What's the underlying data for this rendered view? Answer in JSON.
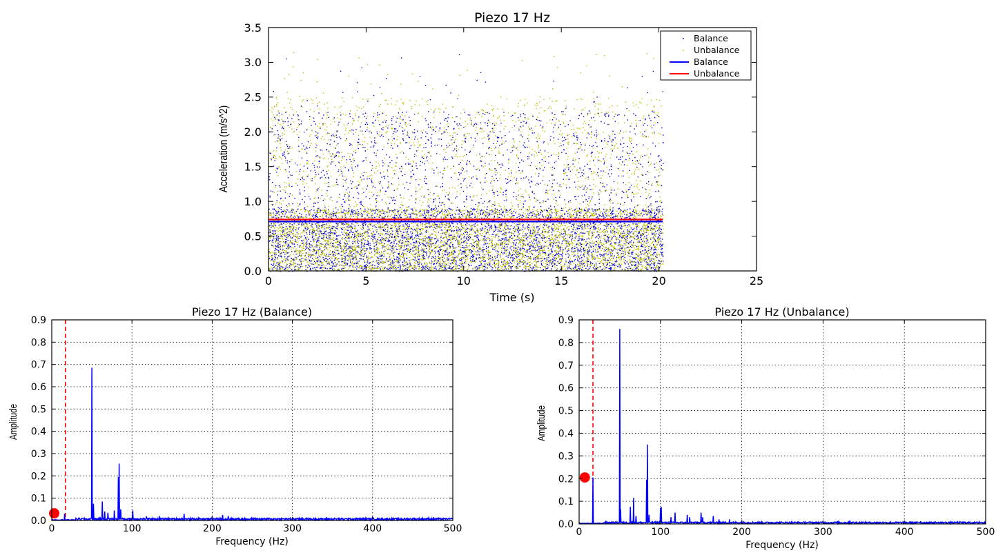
{
  "chart_data": [
    {
      "type": "scatter",
      "title": "Piezo 17 Hz",
      "xlabel": "Time (s)",
      "ylabel": "Acceleration (m/s^2)",
      "xlim": [
        0,
        25
      ],
      "ylim": [
        0,
        3.5
      ],
      "xticks": [
        "0",
        "5",
        "10",
        "15",
        "20",
        "25"
      ],
      "yticks": [
        "0.0",
        "0.5",
        "1.0",
        "1.5",
        "2.0",
        "2.5",
        "3.0",
        "3.5"
      ],
      "grid": false,
      "legend_position": "top-right",
      "legend": [
        {
          "label": "Balance",
          "kind": "points",
          "color": "#0000cc"
        },
        {
          "label": "Unbalance",
          "kind": "points",
          "color": "#bfbf00"
        },
        {
          "label": "Balance",
          "kind": "line",
          "color": "#0000ff"
        },
        {
          "label": "Unbalance",
          "kind": "line",
          "color": "#ff0000"
        }
      ],
      "series": [
        {
          "name": "Balance",
          "kind": "points",
          "color": "#0000cc",
          "x_range": [
            0,
            20.2
          ],
          "y_range": [
            0,
            3.12
          ],
          "typical_max": 2.3
        },
        {
          "name": "Unbalance",
          "kind": "points",
          "color": "#bfbf00",
          "x_range": [
            0,
            20.2
          ],
          "y_range": [
            0,
            3.15
          ],
          "typical_max": 2.5
        },
        {
          "name": "Balance",
          "kind": "line",
          "color": "#0000ff",
          "x": [
            0,
            20.2
          ],
          "y": [
            0.71,
            0.71
          ]
        },
        {
          "name": "Unbalance",
          "kind": "line",
          "color": "#ff0000",
          "x": [
            0,
            20.2
          ],
          "y": [
            0.74,
            0.74
          ]
        }
      ]
    },
    {
      "type": "line",
      "title": "Piezo 17 Hz (Balance)",
      "xlabel": "Frequency (Hz)",
      "ylabel": "Amplitude",
      "xlim": [
        0,
        500
      ],
      "ylim": [
        0,
        0.9
      ],
      "xticks": [
        "0",
        "100",
        "200",
        "300",
        "400",
        "500"
      ],
      "yticks": [
        "0.0",
        "0.1",
        "0.2",
        "0.3",
        "0.4",
        "0.5",
        "0.6",
        "0.7",
        "0.8",
        "0.9"
      ],
      "grid": true,
      "color": "#0000ff",
      "marker_line_x": 17,
      "marker_line_color": "#ff0000",
      "marker_point": {
        "x": 3,
        "y": 0.032,
        "color": "#ff0000"
      },
      "peaks": [
        {
          "x": 16,
          "y": 0.03
        },
        {
          "x": 50,
          "y": 0.685
        },
        {
          "x": 52,
          "y": 0.075
        },
        {
          "x": 63,
          "y": 0.085
        },
        {
          "x": 66,
          "y": 0.04
        },
        {
          "x": 70,
          "y": 0.035
        },
        {
          "x": 78,
          "y": 0.045
        },
        {
          "x": 83,
          "y": 0.195
        },
        {
          "x": 84,
          "y": 0.255
        },
        {
          "x": 86,
          "y": 0.05
        },
        {
          "x": 101,
          "y": 0.045
        },
        {
          "x": 118,
          "y": 0.018
        },
        {
          "x": 134,
          "y": 0.02
        },
        {
          "x": 165,
          "y": 0.03
        },
        {
          "x": 200,
          "y": 0.018
        },
        {
          "x": 213,
          "y": 0.025
        },
        {
          "x": 220,
          "y": 0.02
        },
        {
          "x": 312,
          "y": 0.015
        },
        {
          "x": 400,
          "y": 0.015
        },
        {
          "x": 470,
          "y": 0.013
        }
      ],
      "noise_floor": 0.008
    },
    {
      "type": "line",
      "title": "Piezo 17 Hz (Unbalance)",
      "xlabel": "Frequency (Hz)",
      "ylabel": "Amplitude",
      "xlim": [
        0,
        500
      ],
      "ylim": [
        0,
        0.9
      ],
      "xticks": [
        "0",
        "100",
        "200",
        "300",
        "400",
        "500"
      ],
      "yticks": [
        "0.0",
        "0.1",
        "0.2",
        "0.3",
        "0.4",
        "0.5",
        "0.6",
        "0.7",
        "0.8",
        "0.9"
      ],
      "grid": true,
      "color": "#0000ff",
      "marker_line_x": 17,
      "marker_line_color": "#ff0000",
      "marker_point": {
        "x": 7,
        "y": 0.205,
        "color": "#ff0000"
      },
      "peaks": [
        {
          "x": 17,
          "y": 0.205
        },
        {
          "x": 50,
          "y": 0.86
        },
        {
          "x": 51,
          "y": 0.065
        },
        {
          "x": 63,
          "y": 0.075
        },
        {
          "x": 67,
          "y": 0.115
        },
        {
          "x": 70,
          "y": 0.035
        },
        {
          "x": 83,
          "y": 0.195
        },
        {
          "x": 84,
          "y": 0.35
        },
        {
          "x": 86,
          "y": 0.04
        },
        {
          "x": 100,
          "y": 0.07
        },
        {
          "x": 101,
          "y": 0.075
        },
        {
          "x": 113,
          "y": 0.03
        },
        {
          "x": 118,
          "y": 0.05
        },
        {
          "x": 133,
          "y": 0.04
        },
        {
          "x": 136,
          "y": 0.03
        },
        {
          "x": 150,
          "y": 0.05
        },
        {
          "x": 152,
          "y": 0.03
        },
        {
          "x": 165,
          "y": 0.035
        },
        {
          "x": 172,
          "y": 0.02
        },
        {
          "x": 185,
          "y": 0.02
        },
        {
          "x": 200,
          "y": 0.015
        },
        {
          "x": 300,
          "y": 0.013
        },
        {
          "x": 333,
          "y": 0.015
        },
        {
          "x": 420,
          "y": 0.012
        },
        {
          "x": 492,
          "y": 0.01
        }
      ],
      "noise_floor": 0.007
    }
  ]
}
